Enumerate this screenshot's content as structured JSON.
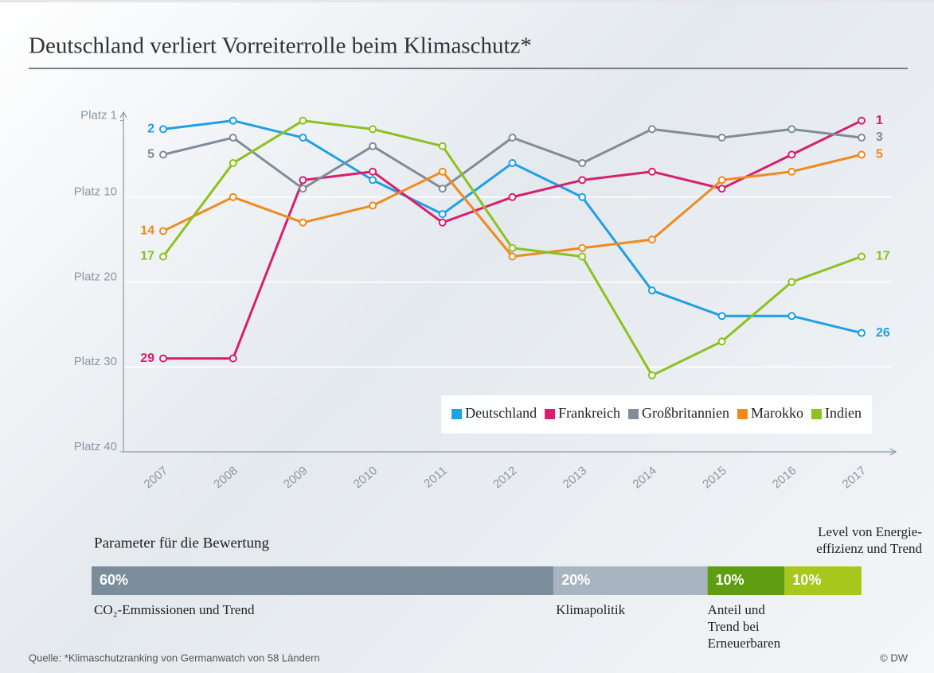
{
  "chart_data": {
    "type": "line",
    "title": "Deutschland verliert Vorreiterrolle beim Klimaschutz*",
    "x": [
      2007,
      2008,
      2009,
      2010,
      2011,
      2012,
      2013,
      2014,
      2015,
      2016,
      2017
    ],
    "series": [
      {
        "name": "Deutschland",
        "color": "#1ea0e6",
        "values": [
          2,
          1,
          3,
          8,
          12,
          6,
          10,
          21,
          24,
          24,
          26
        ]
      },
      {
        "name": "Frankreich",
        "color": "#d81e6e",
        "values": [
          29,
          29,
          8,
          7,
          13,
          10,
          8,
          7,
          9,
          5,
          1
        ]
      },
      {
        "name": "Großbritannien",
        "color": "#7f8c99",
        "values": [
          5,
          3,
          9,
          4,
          9,
          3,
          6,
          2,
          3,
          2,
          3
        ]
      },
      {
        "name": "Marokko",
        "color": "#f0891e",
        "values": [
          14,
          10,
          13,
          11,
          7,
          17,
          16,
          15,
          8,
          7,
          5
        ]
      },
      {
        "name": "Indien",
        "color": "#8cc11e",
        "values": [
          17,
          6,
          1,
          2,
          4,
          16,
          17,
          31,
          27,
          20,
          17
        ]
      }
    ],
    "ylim": [
      40,
      0
    ],
    "yticks": [
      {
        "value": 1,
        "label": "Platz  1"
      },
      {
        "value": 10,
        "label": "Platz 10"
      },
      {
        "value": 20,
        "label": "Platz 20"
      },
      {
        "value": 30,
        "label": "Platz 30"
      },
      {
        "value": 40,
        "label": "Platz 40"
      }
    ],
    "grid": true,
    "legend": "lower right"
  },
  "parameters": {
    "title": "Parameter für die Bewertung",
    "segments": [
      {
        "value": 60,
        "value_label": "60%",
        "color": "#7b8c9b",
        "caption": "CO₂-Emmissionen und Trend"
      },
      {
        "value": 20,
        "value_label": "20%",
        "color": "#a8b4bf",
        "caption": "Klimapolitik"
      },
      {
        "value": 10,
        "value_label": "10%",
        "color": "#5f9e10",
        "caption": "Anteil und Trend bei Erneuerbaren"
      },
      {
        "value": 10,
        "value_label": "10%",
        "color": "#a9c81e",
        "caption": "Level von Energie-effizienz und Trend"
      }
    ]
  },
  "source": "Quelle: *Klimaschutzranking von Germanwatch von 58 Ländern",
  "credit": "© DW"
}
